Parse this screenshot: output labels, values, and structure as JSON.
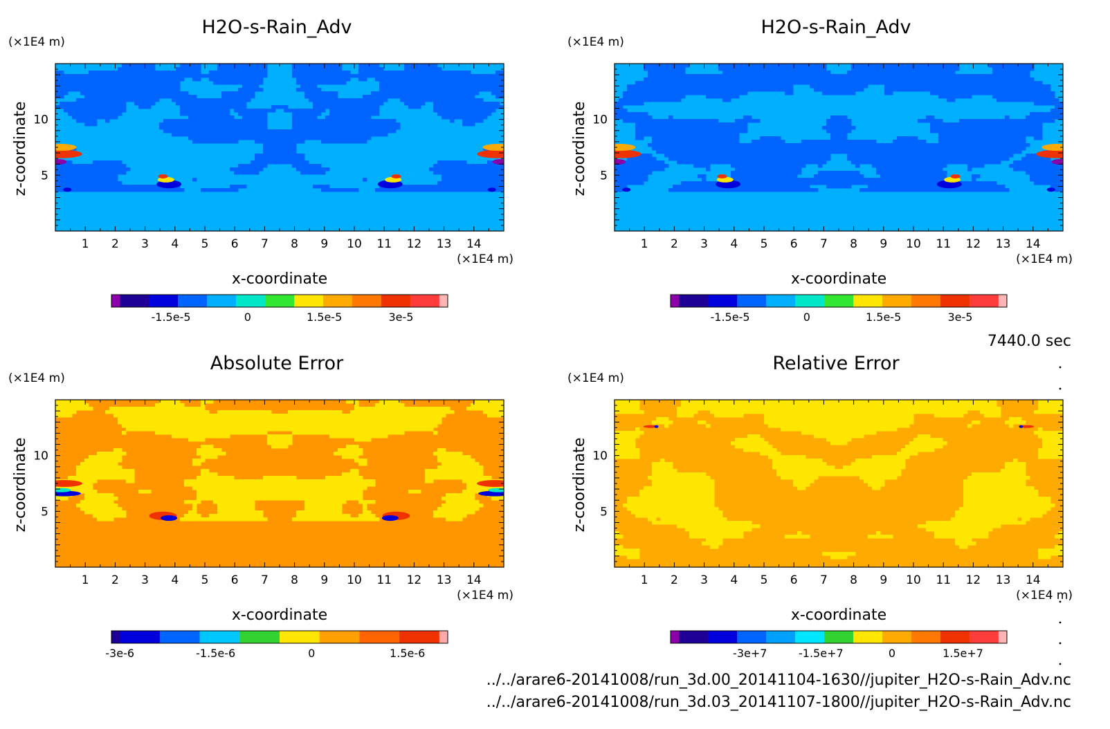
{
  "chart_data": [
    {
      "type": "heatmap",
      "title": "H2O-s-Rain_Adv",
      "xlabel": "x-coordinate",
      "ylabel": "z-coordinate",
      "x_unit": "(×1E4 m)",
      "y_unit": "(×1E4 m)",
      "xlim": [
        0,
        15
      ],
      "ylim": [
        0,
        15
      ],
      "x_ticks": [
        "1",
        "2",
        "3",
        "4",
        "5",
        "6",
        "7",
        "8",
        "9",
        "10",
        "11",
        "12",
        "13",
        "14"
      ],
      "y_ticks": [
        "5",
        "10"
      ],
      "colorbar": {
        "labels": [
          "-1.5e-5",
          "0",
          "1.5e-5",
          "3e-5"
        ],
        "label_values": [
          -1.5e-05,
          0,
          1.5e-05,
          3e-05
        ],
        "range": [
          -2.5e-05,
          3.75e-05
        ],
        "colors": [
          "#8b00a8",
          "#1e0096",
          "#0000dc",
          "#0064ff",
          "#00b0ff",
          "#00e6c8",
          "#32e632",
          "#ffe600",
          "#ffaa00",
          "#ff7800",
          "#f03200",
          "#ff3c3c",
          "#ffb4b4"
        ]
      }
    },
    {
      "type": "heatmap",
      "title": "H2O-s-Rain_Adv",
      "xlabel": "x-coordinate",
      "ylabel": "z-coordinate",
      "x_unit": "(×1E4 m)",
      "y_unit": "(×1E4 m)",
      "xlim": [
        0,
        15
      ],
      "ylim": [
        0,
        15
      ],
      "x_ticks": [
        "1",
        "2",
        "3",
        "4",
        "5",
        "6",
        "7",
        "8",
        "9",
        "10",
        "11",
        "12",
        "13",
        "14"
      ],
      "y_ticks": [
        "5",
        "10"
      ],
      "colorbar": {
        "labels": [
          "-1.5e-5",
          "0",
          "1.5e-5",
          "3e-5"
        ],
        "label_values": [
          -1.5e-05,
          0,
          1.5e-05,
          3e-05
        ],
        "range": [
          -2.5e-05,
          3.75e-05
        ],
        "colors": [
          "#8b00a8",
          "#1e0096",
          "#0000dc",
          "#0064ff",
          "#00b0ff",
          "#00e6c8",
          "#32e632",
          "#ffe600",
          "#ffaa00",
          "#ff7800",
          "#f03200",
          "#ff3c3c",
          "#ffb4b4"
        ]
      }
    },
    {
      "type": "heatmap",
      "title": "Absolute Error",
      "xlabel": "x-coordinate",
      "ylabel": "z-coordinate",
      "x_unit": "(×1E4 m)",
      "y_unit": "(×1E4 m)",
      "xlim": [
        0,
        15
      ],
      "ylim": [
        0,
        15
      ],
      "x_ticks": [
        "1",
        "2",
        "3",
        "4",
        "5",
        "6",
        "7",
        "8",
        "9",
        "10",
        "11",
        "12",
        "13",
        "14"
      ],
      "y_ticks": [
        "5",
        "10"
      ],
      "colorbar": {
        "labels": [
          "-3e-6",
          "-1.5e-6",
          "0",
          "1.5e-6"
        ],
        "label_values": [
          -3e-06,
          -1.5e-06,
          0,
          1.5e-06
        ],
        "range": [
          -3e-06,
          2e-06
        ],
        "colors": [
          "#1e0096",
          "#0000dc",
          "#0064ff",
          "#00c8ff",
          "#32d232",
          "#ffe600",
          "#ffa000",
          "#ff6400",
          "#f03200",
          "#ffaaaa"
        ]
      }
    },
    {
      "type": "heatmap",
      "title": "Relative Error",
      "xlabel": "x-coordinate",
      "ylabel": "z-coordinate",
      "x_unit": "(×1E4 m)",
      "y_unit": "(×1E4 m)",
      "xlim": [
        0,
        15
      ],
      "ylim": [
        0,
        15
      ],
      "x_ticks": [
        "1",
        "2",
        "3",
        "4",
        "5",
        "6",
        "7",
        "8",
        "9",
        "10",
        "11",
        "12",
        "13",
        "14"
      ],
      "y_ticks": [
        "5",
        "10"
      ],
      "colorbar": {
        "labels": [
          "-3e+7",
          "-1.5e+7",
          "0",
          "1.5e+7"
        ],
        "label_values": [
          -30000000.0,
          -15000000.0,
          0,
          15000000.0
        ],
        "range": [
          -45000000.0,
          22500000.0
        ],
        "colors": [
          "#8b00a8",
          "#1e0096",
          "#0000dc",
          "#0064ff",
          "#00a0ff",
          "#00e6ff",
          "#32d232",
          "#ffe600",
          "#ffaa00",
          "#ff7800",
          "#f03200",
          "#ff3c3c",
          "#ffb4b4"
        ]
      }
    }
  ],
  "time_label": "7440.0 sec",
  "file_paths": [
    "../../arare6-20141008/run_3d.00_20141104-1630//jupiter_H2O-s-Rain_Adv.nc",
    "../../arare6-20141008/run_3d.03_20141107-1800//jupiter_H2O-s-Rain_Adv.nc"
  ],
  "palettes": {
    "field": [
      "#0064ff",
      "#00b0ff"
    ],
    "abs_error": [
      "#ff9600",
      "#ffe600"
    ],
    "rel_error": [
      "#ffaa00",
      "#ffe600"
    ],
    "accents": [
      "#0000dc",
      "#ffe600",
      "#ffaa00",
      "#f03200",
      "#8b00a8",
      "#00e6c8"
    ]
  }
}
